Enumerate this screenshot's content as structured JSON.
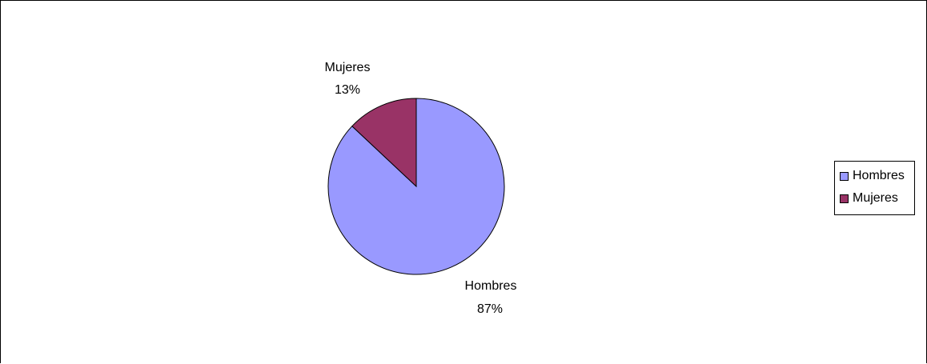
{
  "chart_data": {
    "type": "pie",
    "slices": [
      {
        "label": "Hombres",
        "value": 87,
        "percent_label": "87%",
        "color": "#9999FF"
      },
      {
        "label": "Mujeres",
        "value": 13,
        "percent_label": "13%",
        "color": "#993366"
      }
    ],
    "start": "12 o'clock",
    "direction": "clockwise",
    "legend": {
      "placement": "right",
      "items": [
        "Hombres",
        "Mujeres"
      ]
    },
    "title": ""
  }
}
